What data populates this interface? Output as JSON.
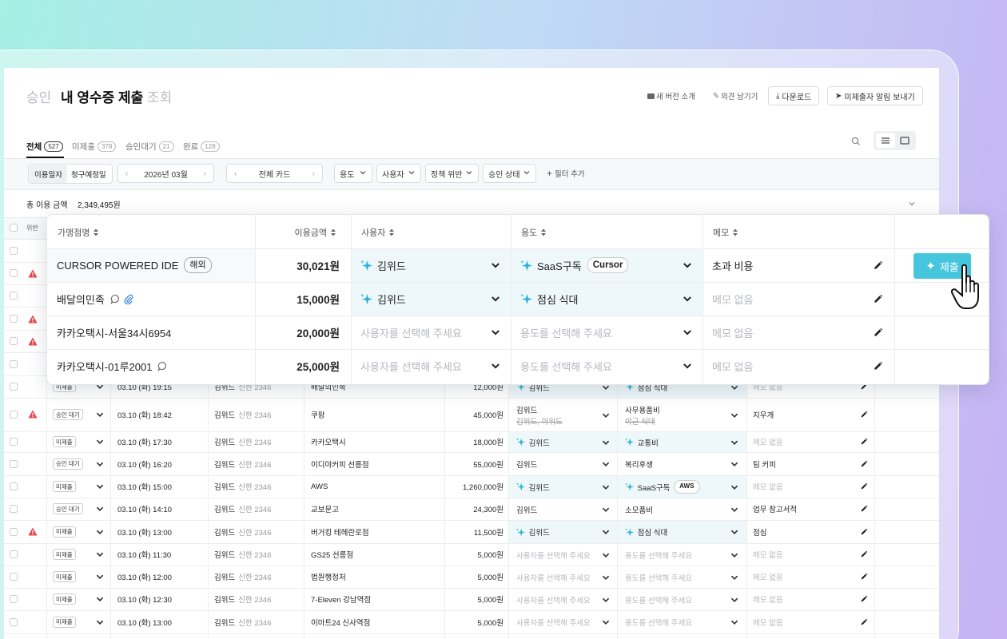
{
  "header": {
    "tabs": [
      "승인",
      "내 영수증 제출",
      "조회"
    ],
    "actions": [
      "새 버전 소개",
      "의견 남기기",
      "다운로드",
      "미제출자 알림 보내기"
    ]
  },
  "status_tabs": [
    {
      "label": "전체",
      "count": 527
    },
    {
      "label": "미제출",
      "count": 378
    },
    {
      "label": "승인대기",
      "count": 21
    },
    {
      "label": "완료",
      "count": 128
    }
  ],
  "filters": {
    "date_types": [
      "이용일자",
      "청구예정일"
    ],
    "month": "2026년 03월",
    "card": "전체 카드",
    "dropdowns": [
      "용도",
      "사용자",
      "정책 위반",
      "승인 상태"
    ],
    "add": "필터 추가"
  },
  "summary": {
    "label": "총 이용 금액",
    "amount": "2,349,495원"
  },
  "table": {
    "violation_header": "위반",
    "rows": [
      {
        "violation": false,
        "status": "미제출",
        "datetime": "03.10 (화) 19:15",
        "user": "김위드",
        "card": "신한 2346",
        "merchant": "배달의민족",
        "amount": "12,000원",
        "assignee": {
          "text": "김위드",
          "style": "ai"
        },
        "purpose": {
          "text": "점심 식대",
          "style": "ai"
        },
        "memo": {
          "text": "메모 없음",
          "style": "placeholder"
        }
      },
      {
        "violation": true,
        "status": "승인 대기",
        "datetime": "03.10 (화) 18:42",
        "user": "김위드",
        "card": "신한 2346",
        "merchant": "쿠팡",
        "amount": "45,000원",
        "assignee": {
          "text": "김위드",
          "style": "plain",
          "previous": "김위드, 이위드"
        },
        "purpose": {
          "text": "사무용품비",
          "style": "plain",
          "previous": "야근 식대"
        },
        "memo": {
          "text": "지우개",
          "style": "plain"
        }
      },
      {
        "violation": false,
        "status": "미제출",
        "datetime": "03.10 (화) 17:30",
        "user": "김위드",
        "card": "신한 2346",
        "merchant": "카카오택시",
        "amount": "18,000원",
        "assignee": {
          "text": "김위드",
          "style": "ai"
        },
        "purpose": {
          "text": "교통비",
          "style": "ai"
        },
        "memo": {
          "text": "메모 없음",
          "style": "placeholder"
        }
      },
      {
        "violation": false,
        "status": "승인 대기",
        "datetime": "03.10 (화) 16:20",
        "user": "김위드",
        "card": "신한 2346",
        "merchant": "이디야커피 선릉점",
        "amount": "55,000원",
        "assignee": {
          "text": "김위드",
          "style": "plain"
        },
        "purpose": {
          "text": "복리후생",
          "style": "plain"
        },
        "memo": {
          "text": "팀 커피",
          "style": "plain"
        }
      },
      {
        "violation": false,
        "status": "미제출",
        "datetime": "03.10 (화) 15:00",
        "user": "김위드",
        "card": "신한 2346",
        "merchant": "AWS",
        "amount": "1,260,000원",
        "assignee": {
          "text": "김위드",
          "style": "ai"
        },
        "purpose": {
          "text": "SaaS구독",
          "style": "ai",
          "tag": "AWS"
        },
        "memo": {
          "text": "메모 없음",
          "style": "placeholder"
        }
      },
      {
        "violation": false,
        "status": "승인 대기",
        "datetime": "03.10 (화) 14:10",
        "user": "김위드",
        "card": "신한 2346",
        "merchant": "교보문고",
        "amount": "24,300원",
        "assignee": {
          "text": "김위드",
          "style": "plain"
        },
        "purpose": {
          "text": "소모품비",
          "style": "plain"
        },
        "memo": {
          "text": "업무 참고서적",
          "style": "plain"
        }
      },
      {
        "violation": true,
        "status": "미제출",
        "datetime": "03.10 (화) 13:00",
        "user": "김위드",
        "card": "신한 2346",
        "merchant": "버거킹 테헤란로점",
        "amount": "11,500원",
        "assignee": {
          "text": "김위드",
          "style": "ai"
        },
        "purpose": {
          "text": "점심 식대",
          "style": "ai"
        },
        "memo": {
          "text": "점심",
          "style": "plain"
        }
      },
      {
        "violation": false,
        "status": "미제출",
        "datetime": "03.10 (화) 11:30",
        "user": "김위드",
        "card": "신한 2346",
        "merchant": "GS25 선릉점",
        "amount": "5,000원",
        "assignee": {
          "text": "사용자를 선택해 주세요",
          "style": "placeholder"
        },
        "purpose": {
          "text": "용도를 선택해 주세요",
          "style": "placeholder"
        },
        "memo": {
          "text": "메모 없음",
          "style": "placeholder"
        }
      },
      {
        "violation": false,
        "status": "미제출",
        "datetime": "03.10 (화) 12:00",
        "user": "김위드",
        "card": "신한 2346",
        "merchant": "법원행정처",
        "amount": "5,000원",
        "assignee": {
          "text": "사용자를 선택해 주세요",
          "style": "placeholder"
        },
        "purpose": {
          "text": "용도를 선택해 주세요",
          "style": "placeholder"
        },
        "memo": {
          "text": "메모 없음",
          "style": "placeholder"
        }
      },
      {
        "violation": false,
        "status": "미제출",
        "datetime": "03.10 (화) 12:30",
        "user": "김위드",
        "card": "신한 2346",
        "merchant": "7-Eleven 강남역점",
        "amount": "5,000원",
        "assignee": {
          "text": "사용자를 선택해 주세요",
          "style": "placeholder"
        },
        "purpose": {
          "text": "용도를 선택해 주세요",
          "style": "placeholder"
        },
        "memo": {
          "text": "메모 없음",
          "style": "placeholder"
        }
      },
      {
        "violation": false,
        "status": "미제출",
        "datetime": "03.10 (화) 13:00",
        "user": "김위드",
        "card": "신한 2346",
        "merchant": "이마트24 신사역점",
        "amount": "5,000원",
        "assignee": {
          "text": "사용자를 선택해 주세요",
          "style": "placeholder"
        },
        "purpose": {
          "text": "용도를 선택해 주세요",
          "style": "placeholder"
        },
        "memo": {
          "text": "메모 없음",
          "style": "placeholder"
        }
      }
    ]
  },
  "popup": {
    "columns": [
      "가맹점명",
      "이용금액",
      "사용자",
      "용도",
      "메모"
    ],
    "rows": [
      {
        "merchant": "CURSOR POWERED IDE",
        "badge": "해외",
        "amount": "30,021원",
        "assignee": {
          "text": "김위드",
          "style": "ai"
        },
        "purpose": {
          "text": "SaaS구독",
          "style": "ai",
          "tag": "Cursor"
        },
        "memo": {
          "text": "초과 비용",
          "style": "plain"
        },
        "submit": "제출"
      },
      {
        "merchant": "배달의민족",
        "comment": true,
        "attachment": true,
        "amount": "15,000원",
        "assignee": {
          "text": "김위드",
          "style": "ai"
        },
        "purpose": {
          "text": "점심 식대",
          "style": "ai"
        },
        "memo": {
          "text": "메모 없음",
          "style": "placeholder"
        }
      },
      {
        "merchant": "카카오택시-서울34시6954",
        "amount": "20,000원",
        "assignee": {
          "text": "사용자를 선택해 주세요",
          "style": "placeholder"
        },
        "purpose": {
          "text": "용도를 선택해 주세요",
          "style": "placeholder"
        },
        "memo": {
          "text": "메모 없음",
          "style": "placeholder"
        }
      },
      {
        "merchant": "카카오택시-01루2001",
        "comment": true,
        "amount": "25,000원",
        "assignee": {
          "text": "사용자를 선택해 주세요",
          "style": "placeholder"
        },
        "purpose": {
          "text": "용도를 선택해 주세요",
          "style": "placeholder"
        },
        "memo": {
          "text": "메모 없음",
          "style": "placeholder"
        }
      }
    ]
  }
}
